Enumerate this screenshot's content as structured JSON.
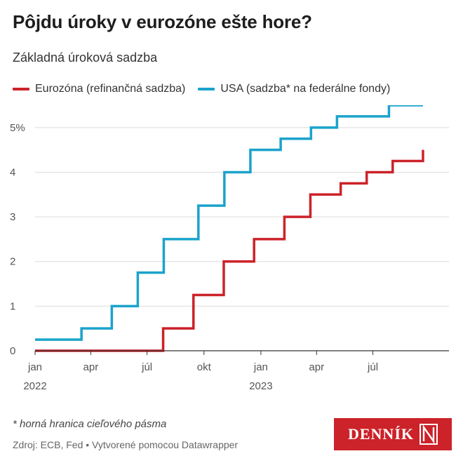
{
  "header": {
    "title": "Pôjdu úroky v eurozóne ešte hore?",
    "subtitle": "Základná úroková sadzba"
  },
  "legend": {
    "items": [
      {
        "label": "Eurozóna (refinančná sadzba)",
        "color": "#cc2229"
      },
      {
        "label": "USA (sadzba* na federálne fondy)",
        "color": "#1aa3cc"
      }
    ]
  },
  "footer": {
    "footnote": "* horná hranica cieľového pásma",
    "source": "Zdroj: ECB, Fed • Vytvorené pomocou Datawrapper",
    "logo_text": "DENNÍK"
  },
  "chart_data": {
    "type": "line",
    "step": true,
    "title": "Pôjdu úroky v eurozóne ešte hore?",
    "subtitle": "Základná úroková sadzba",
    "xlim": [
      "2022-01-01",
      "2023-11-01"
    ],
    "ylim": [
      0,
      5.5
    ],
    "yticks": [
      0,
      1,
      2,
      3,
      4,
      5
    ],
    "ytick_labels": [
      "0",
      "1",
      "2",
      "3",
      "4",
      "5%"
    ],
    "xticks": [
      {
        "date": "2022-01-01",
        "label": "jan",
        "year": "2022"
      },
      {
        "date": "2022-04-01",
        "label": "apr",
        "year": ""
      },
      {
        "date": "2022-07-01",
        "label": "júl",
        "year": ""
      },
      {
        "date": "2022-10-01",
        "label": "okt",
        "year": ""
      },
      {
        "date": "2023-01-01",
        "label": "jan",
        "year": "2023"
      },
      {
        "date": "2023-04-01",
        "label": "apr",
        "year": ""
      },
      {
        "date": "2023-07-01",
        "label": "júl",
        "year": ""
      }
    ],
    "grid": true,
    "legend_position": "top-left",
    "series": [
      {
        "name": "Eurozóna (refinančná sadzba)",
        "color": "#cc2229",
        "points": [
          {
            "date": "2022-01-01",
            "value": 0
          },
          {
            "date": "2022-07-27",
            "value": 0.5
          },
          {
            "date": "2022-09-14",
            "value": 1.25
          },
          {
            "date": "2022-11-02",
            "value": 2.0
          },
          {
            "date": "2022-12-21",
            "value": 2.5
          },
          {
            "date": "2023-02-08",
            "value": 3.0
          },
          {
            "date": "2023-03-22",
            "value": 3.5
          },
          {
            "date": "2023-05-10",
            "value": 3.75
          },
          {
            "date": "2023-06-21",
            "value": 4.0
          },
          {
            "date": "2023-08-02",
            "value": 4.25
          },
          {
            "date": "2023-09-20",
            "value": 4.5
          }
        ],
        "end_date": "2023-09-20"
      },
      {
        "name": "USA (sadzba* na federálne fondy)",
        "color": "#1aa3cc",
        "points": [
          {
            "date": "2022-01-01",
            "value": 0.25
          },
          {
            "date": "2022-03-17",
            "value": 0.5
          },
          {
            "date": "2022-05-05",
            "value": 1.0
          },
          {
            "date": "2022-06-16",
            "value": 1.75
          },
          {
            "date": "2022-07-28",
            "value": 2.5
          },
          {
            "date": "2022-09-22",
            "value": 3.25
          },
          {
            "date": "2022-11-03",
            "value": 4.0
          },
          {
            "date": "2022-12-15",
            "value": 4.5
          },
          {
            "date": "2023-02-02",
            "value": 4.75
          },
          {
            "date": "2023-03-23",
            "value": 5.0
          },
          {
            "date": "2023-05-04",
            "value": 5.25
          },
          {
            "date": "2023-07-27",
            "value": 5.5
          }
        ],
        "end_date": "2023-09-20"
      }
    ]
  }
}
